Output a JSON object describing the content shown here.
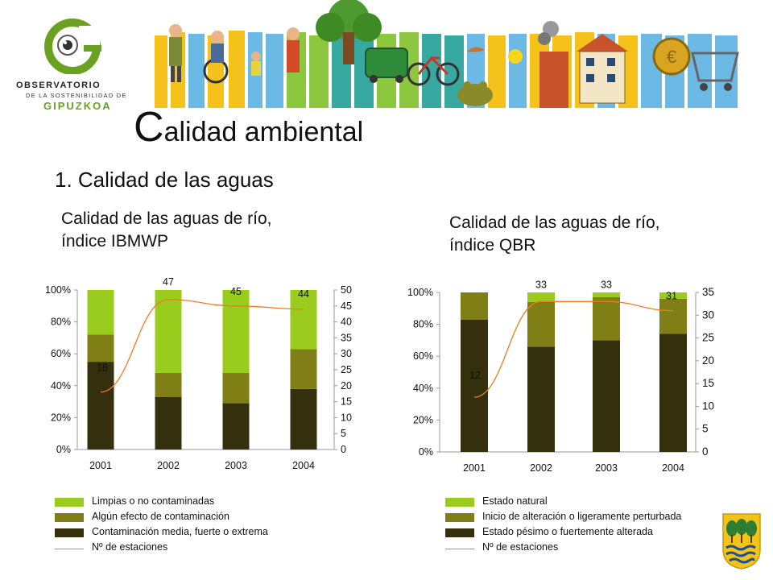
{
  "logo": {
    "line1": "OBSERVATORIO",
    "line2": "DE LA SOSTENIBILIDAD DE",
    "line3": "GIPUZKOA",
    "icon": "observatory-g-eye-logo"
  },
  "banner": {
    "icon": "illustrated-sustainability-banner"
  },
  "title": {
    "first_letter": "C",
    "rest": "alidad ambiental"
  },
  "section": "1. Calidad de las aguas",
  "colors": {
    "light_green": "#99cc1c",
    "olive": "#7f7f16",
    "dark": "#34300d",
    "line": "#f07a22"
  },
  "chart_data": [
    {
      "type": "bar",
      "stacked": true,
      "percent_axis": true,
      "title": "Calidad de las aguas de río, índice IBMWP",
      "categories": [
        "2001",
        "2002",
        "2003",
        "2004"
      ],
      "series": [
        {
          "name": "Contaminación media, fuerte o extrema",
          "values": [
            55,
            33,
            29,
            38
          ],
          "color": "#34300d"
        },
        {
          "name": "Algún efecto de contaminación",
          "values": [
            17,
            15,
            19,
            25
          ],
          "color": "#7f7f16"
        },
        {
          "name": "Limpias o no contaminadas",
          "values": [
            28,
            52,
            52,
            37
          ],
          "color": "#99cc1c"
        }
      ],
      "line": {
        "name": "Nº de estaciones",
        "values": [
          18,
          47,
          45,
          44
        ],
        "color": "#f07a22",
        "labels": [
          "18",
          "47",
          "45",
          "44"
        ]
      },
      "ylim": [
        0,
        100
      ],
      "y_ticks": [
        "0%",
        "20%",
        "40%",
        "60%",
        "80%",
        "100%"
      ],
      "y2lim": [
        0,
        50
      ],
      "y2_ticks": [
        "0",
        "5",
        "10",
        "15",
        "20",
        "25",
        "30",
        "35",
        "40",
        "45",
        "50"
      ],
      "legend_position": "bottom"
    },
    {
      "type": "bar",
      "stacked": true,
      "percent_axis": true,
      "title": "Calidad de las aguas de río, índice QBR",
      "categories": [
        "2001",
        "2002",
        "2003",
        "2004"
      ],
      "series": [
        {
          "name": "Estado pésimo o fuertemente alterada",
          "values": [
            83,
            66,
            70,
            74
          ],
          "color": "#34300d"
        },
        {
          "name": "Inicio de alteración o ligeramente perturbada",
          "values": [
            17,
            28,
            27,
            22
          ],
          "color": "#7f7f16"
        },
        {
          "name": "Estado natural",
          "values": [
            0,
            6,
            3,
            4
          ],
          "color": "#99cc1c"
        }
      ],
      "line": {
        "name": "Nº de estaciones",
        "values": [
          12,
          33,
          33,
          31
        ],
        "color": "#f07a22",
        "labels": [
          "12",
          "33",
          "33",
          "31"
        ]
      },
      "ylim": [
        0,
        100
      ],
      "y_ticks": [
        "0%",
        "20%",
        "40%",
        "60%",
        "80%",
        "100%"
      ],
      "y2lim": [
        0,
        35
      ],
      "y2_ticks": [
        "0",
        "5",
        "10",
        "15",
        "20",
        "25",
        "30",
        "35"
      ],
      "legend_position": "bottom"
    }
  ],
  "shield_icon": "gipuzkoa-coat-of-arms"
}
